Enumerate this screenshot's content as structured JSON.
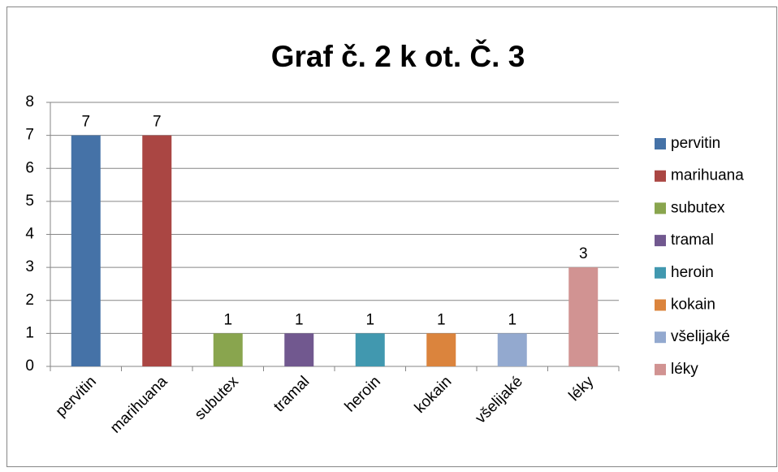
{
  "chart_data": {
    "type": "bar",
    "title": "Graf č. 2 k ot. Č. 3",
    "categories": [
      "pervitin",
      "marihuana",
      "subutex",
      "tramal",
      "heroin",
      "kokain",
      "všelijaké",
      "léky"
    ],
    "values": [
      7,
      7,
      1,
      1,
      1,
      1,
      1,
      3
    ],
    "colors": [
      "#4572a7",
      "#aa4643",
      "#89a54e",
      "#71588f",
      "#4198af",
      "#db843d",
      "#93a9cf",
      "#d19392"
    ],
    "ylim": [
      0,
      8
    ],
    "yticks": [
      0,
      1,
      2,
      3,
      4,
      5,
      6,
      7,
      8
    ],
    "grid": true,
    "legend": "right"
  }
}
